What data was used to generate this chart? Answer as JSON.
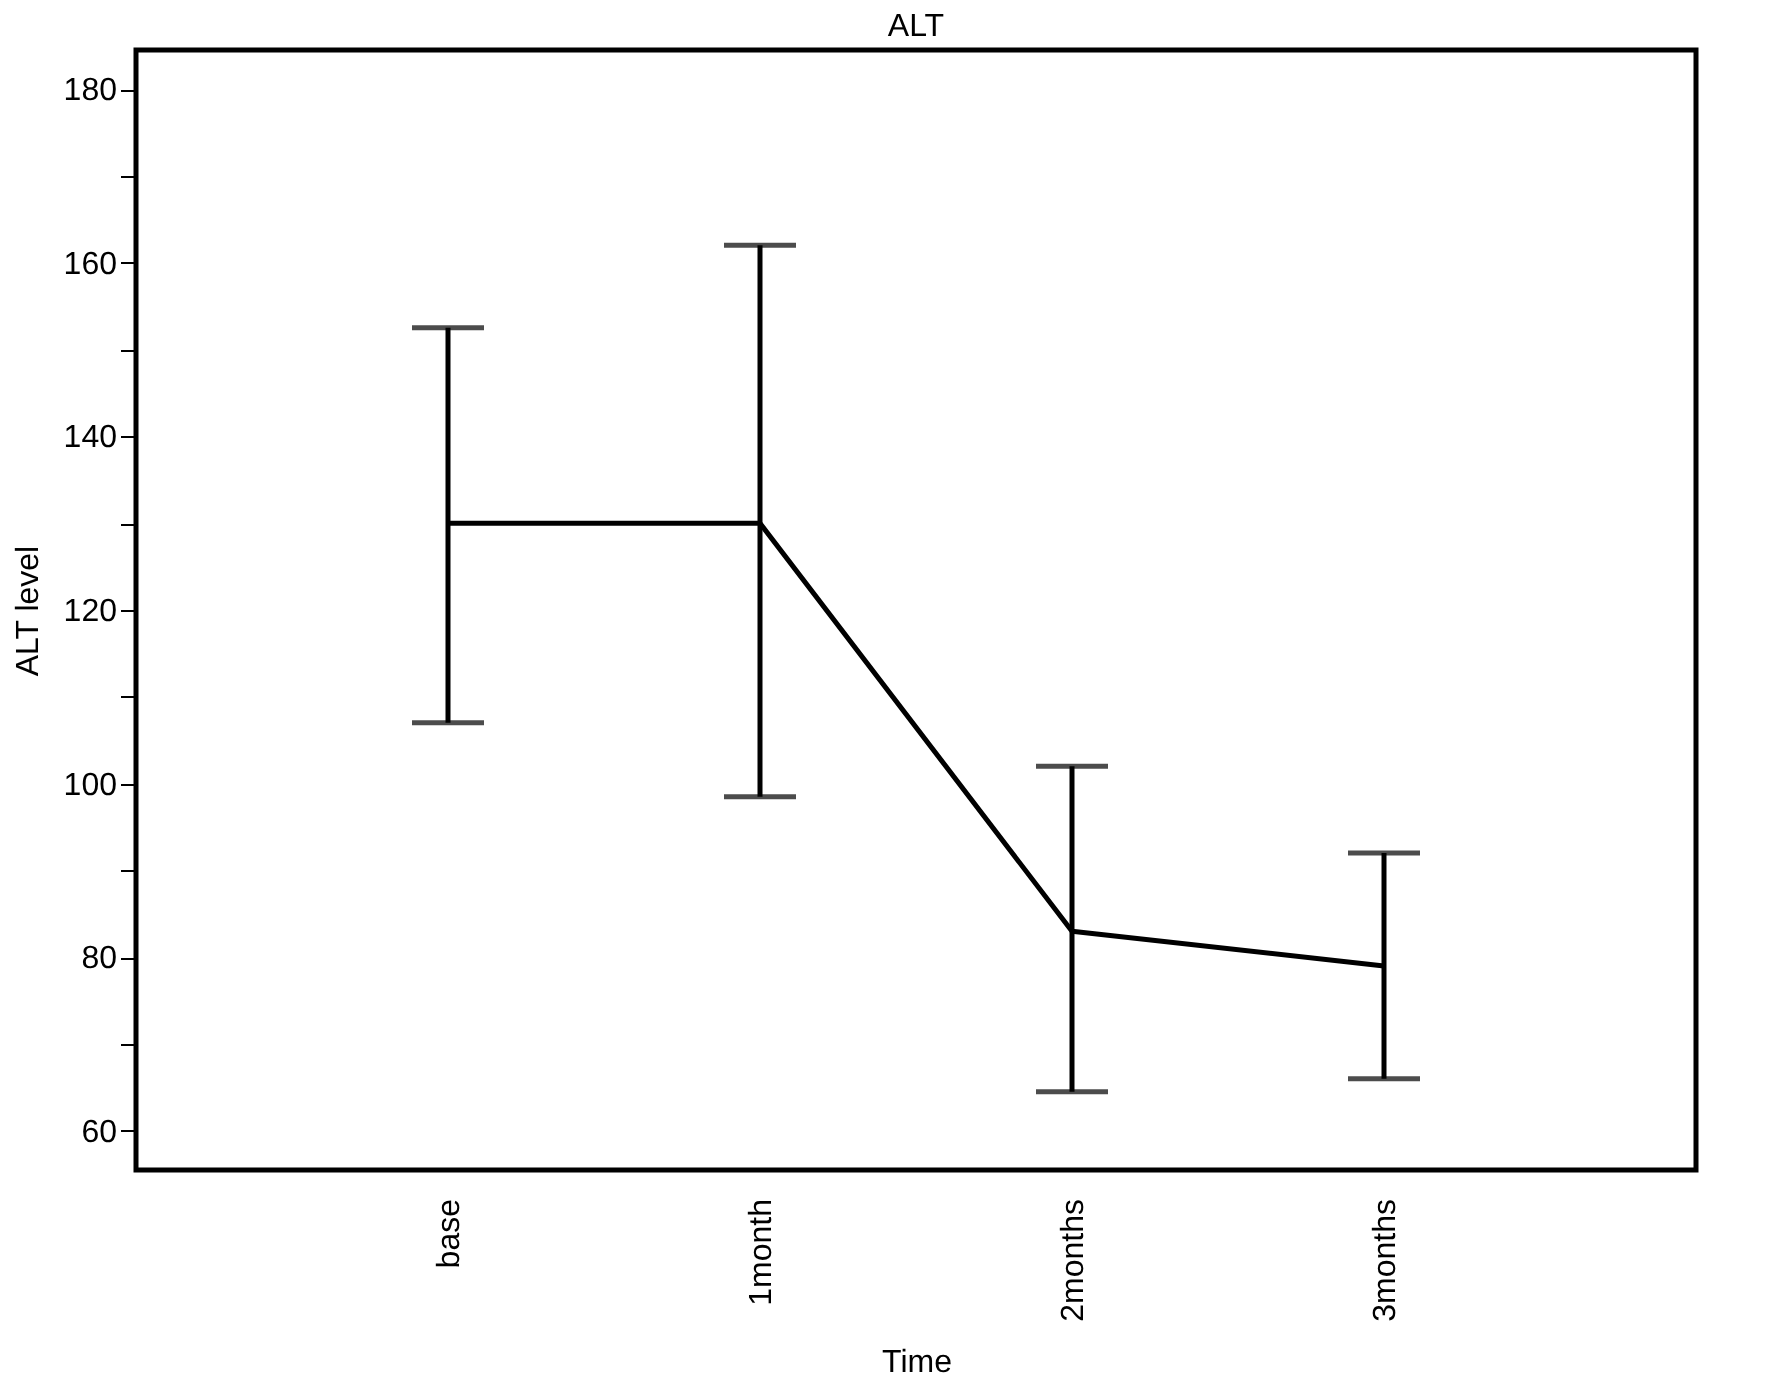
{
  "chart_data": {
    "type": "line",
    "title": "ALT",
    "xlabel": "Time",
    "ylabel": "ALT level",
    "categories": [
      "base",
      "1month",
      "2months",
      "3months"
    ],
    "values": [
      130,
      130,
      83,
      79
    ],
    "errors": [
      [
        107,
        152.5
      ],
      [
        98.5,
        162
      ],
      [
        64.5,
        102
      ],
      [
        66,
        92
      ]
    ],
    "color": "#000000",
    "ylim": [
      55.5,
      184.5
    ],
    "yticks": [
      60,
      {
        "value": 70,
        "label": null
      },
      80,
      {
        "value": 90,
        "label": null
      },
      100,
      {
        "value": 110,
        "label": null
      },
      120,
      {
        "value": 130,
        "label": null
      },
      140,
      {
        "value": 150,
        "label": null
      },
      160,
      {
        "value": 170,
        "label": null
      },
      180
    ],
    "grid": false,
    "marker": "none",
    "line_style": "solid"
  }
}
